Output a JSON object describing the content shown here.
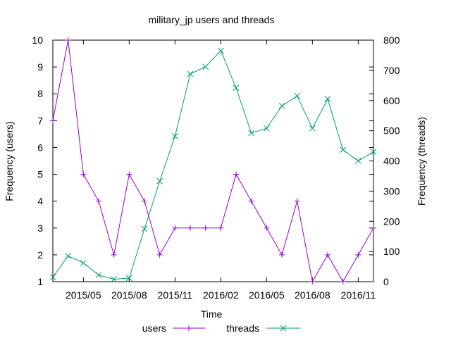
{
  "chart_data": {
    "type": "line",
    "title": "military_jp users and threads",
    "xlabel": "Time",
    "ylabel": "Frequency (users)",
    "y2label": "Frequency (threads)",
    "x": [
      "2015-03",
      "2015-04",
      "2015-05",
      "2015-06",
      "2015-07",
      "2015-08",
      "2015-09",
      "2015-10",
      "2015-11",
      "2015-12",
      "2016-01",
      "2016-02",
      "2016-03",
      "2016-04",
      "2016-05",
      "2016-06",
      "2016-07",
      "2016-08",
      "2016-09",
      "2016-10",
      "2016-11",
      "2016-12"
    ],
    "xticks": [
      "2015/05",
      "2015/08",
      "2015/11",
      "2016/02",
      "2016/05",
      "2016/08",
      "2016/11"
    ],
    "xtick_dates": [
      "2015-05",
      "2015-08",
      "2015-11",
      "2016-02",
      "2016-05",
      "2016-08",
      "2016-11"
    ],
    "ylim": [
      1,
      10
    ],
    "y2lim": [
      0,
      800
    ],
    "yticks": [
      1,
      2,
      3,
      4,
      5,
      6,
      7,
      8,
      9,
      10
    ],
    "y2ticks": [
      0,
      100,
      200,
      300,
      400,
      500,
      600,
      700,
      800
    ],
    "grid": false,
    "legend_position": "bottom",
    "series": [
      {
        "name": "users",
        "axis": "left",
        "color": "#9400d3",
        "marker": "plus",
        "values": [
          7,
          10,
          5,
          4,
          2,
          5,
          4,
          2,
          3,
          3,
          3,
          3,
          5,
          4,
          3,
          2,
          4,
          1,
          2,
          1,
          2,
          3
        ]
      },
      {
        "name": "threads",
        "axis": "right",
        "color": "#009e73",
        "marker": "cross",
        "values": [
          15,
          85,
          62,
          22,
          8,
          12,
          175,
          333,
          482,
          688,
          712,
          765,
          642,
          492,
          508,
          582,
          615,
          508,
          605,
          437,
          400,
          430
        ]
      }
    ]
  }
}
